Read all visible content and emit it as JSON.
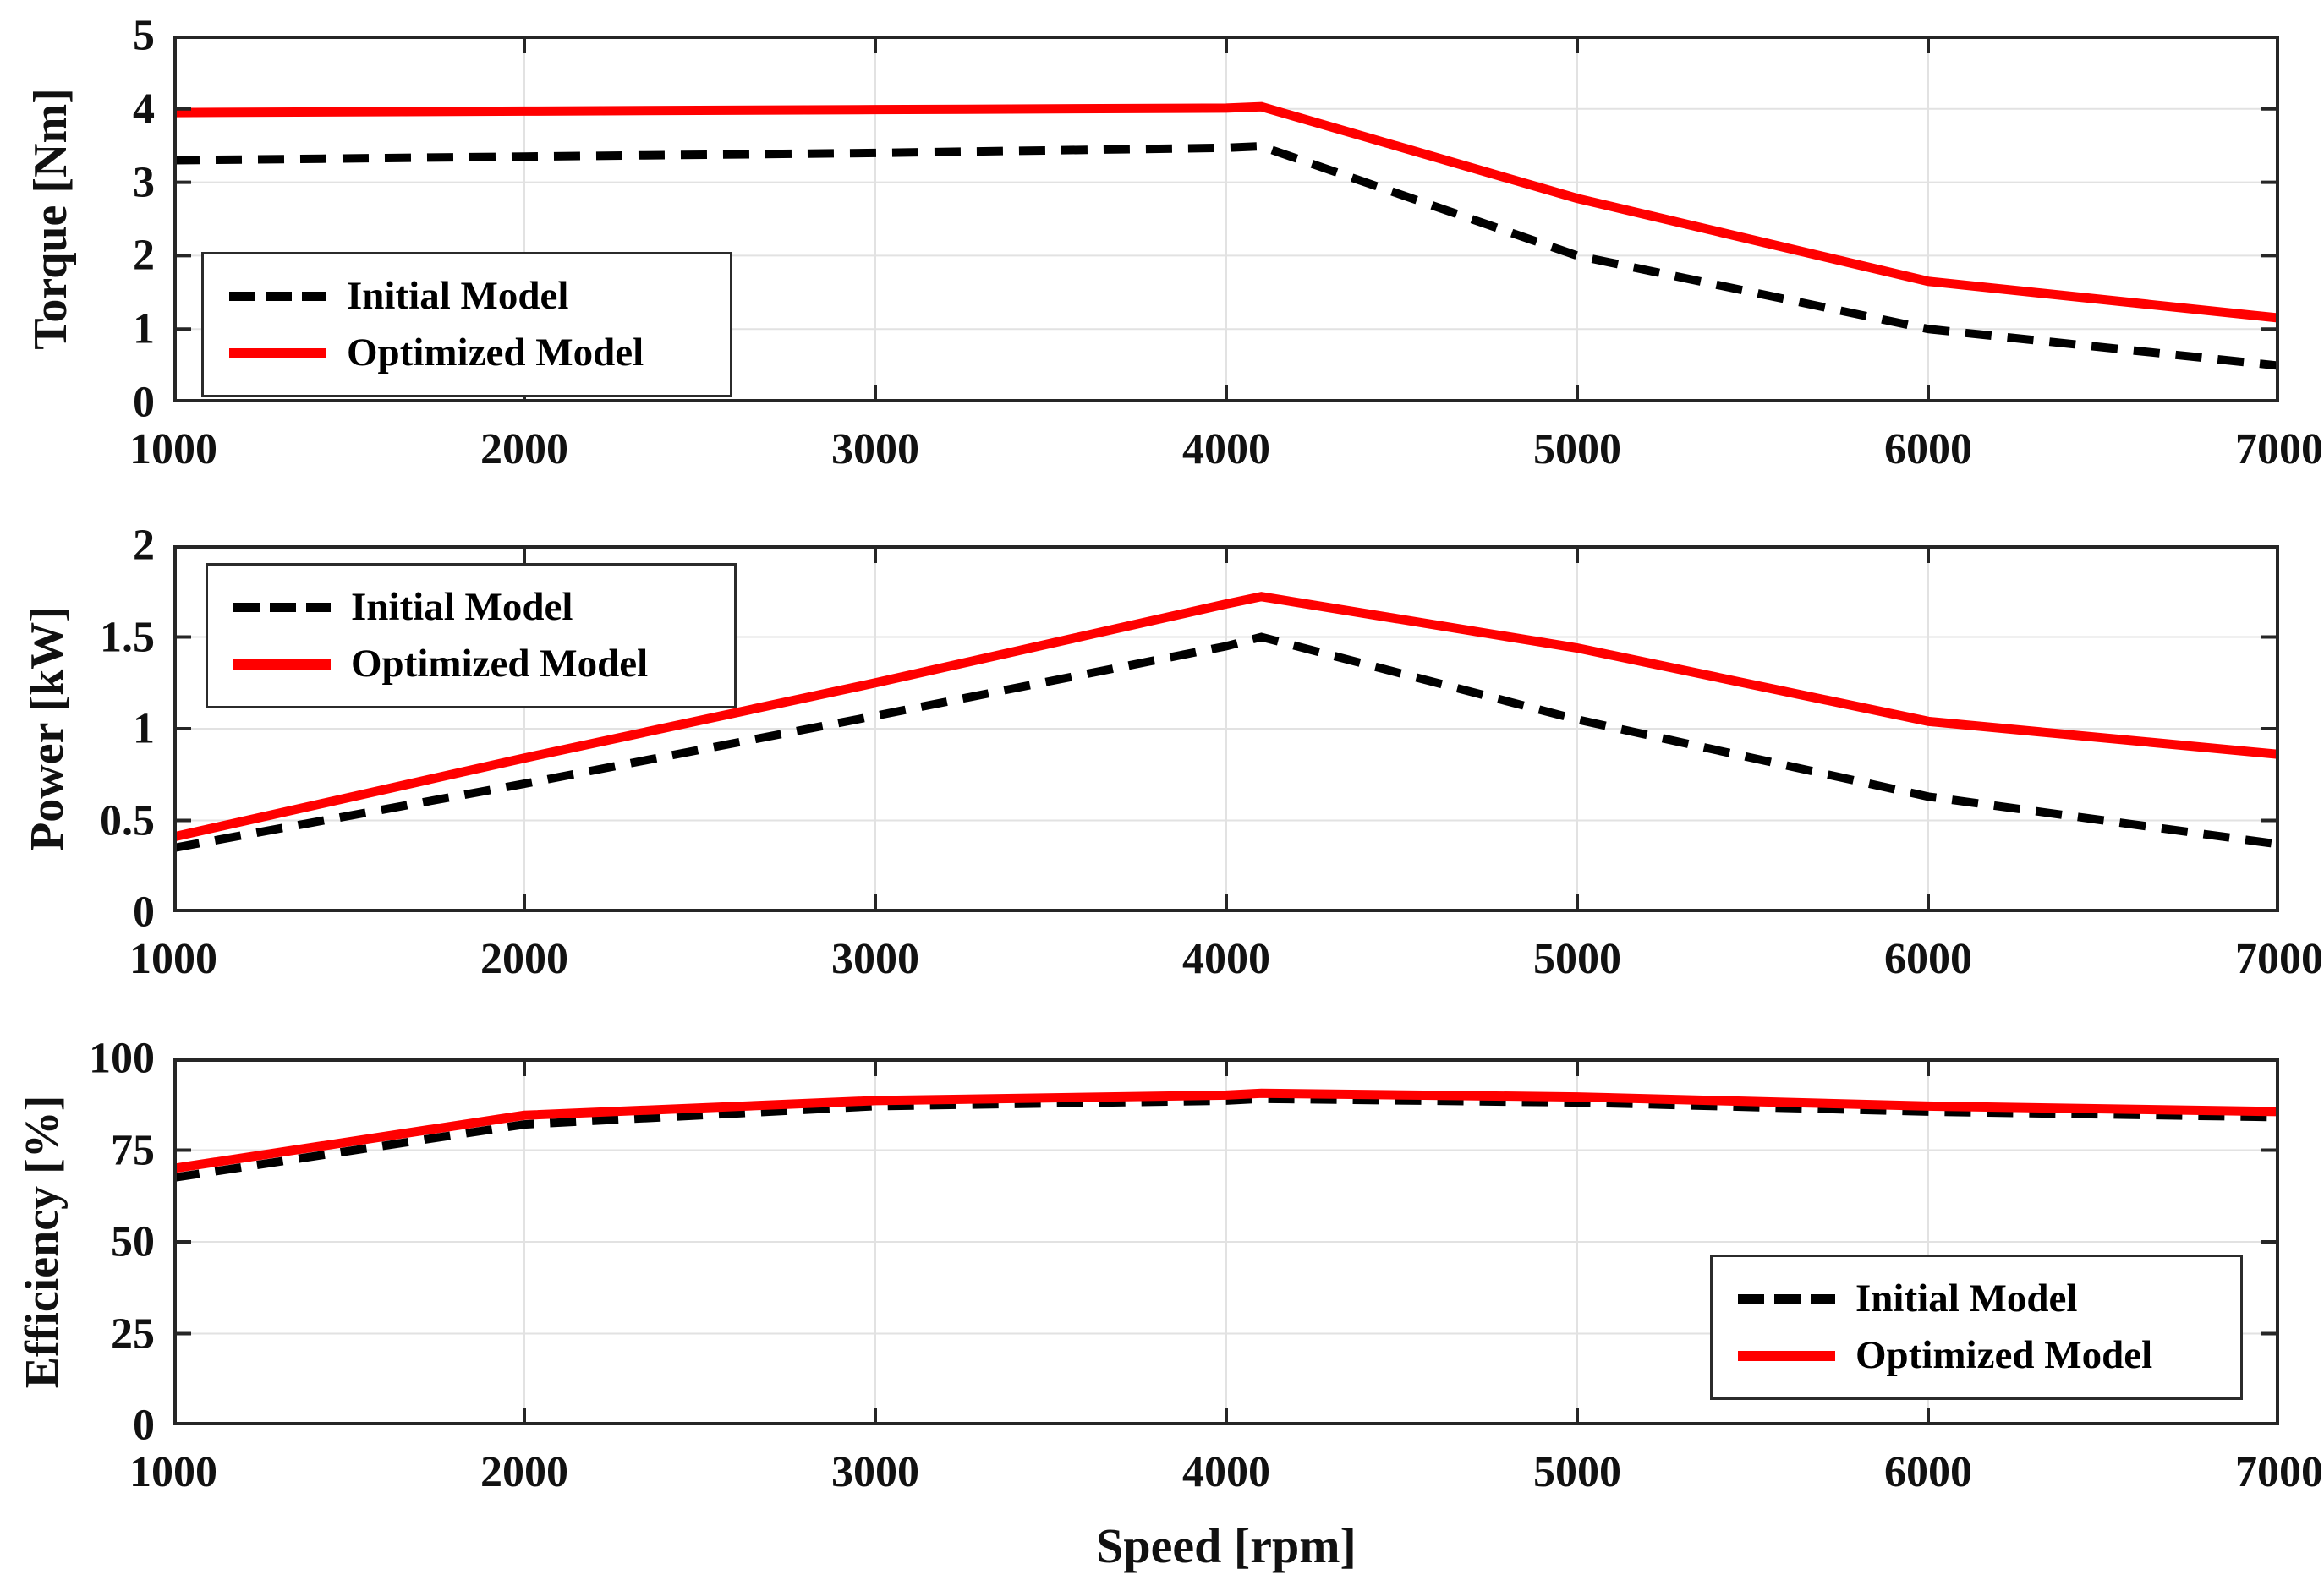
{
  "figure": {
    "xlabel": "Speed [rpm]",
    "background_color": "#FFFFFF",
    "frame_color": "#262626",
    "grid_color": "#E2E2E2"
  },
  "legend": {
    "initial_label": "Initial Model",
    "optimized_label": "Optimized Model",
    "initial_color": "#000000",
    "optimized_color": "#FF0000"
  },
  "chart_data": {
    "type": "line",
    "xlabel": "Speed [rpm]",
    "x": [
      1000,
      2000,
      3000,
      4000,
      4100,
      5000,
      6000,
      7000
    ],
    "x_ticks": [
      1000,
      2000,
      3000,
      4000,
      5000,
      6000,
      7000
    ],
    "xlim": [
      1000,
      7000
    ],
    "grid": true,
    "legend_entries": [
      "Initial Model",
      "Optimized Model"
    ],
    "panels": [
      {
        "ylabel": "Torque [Nm]",
        "ylim": [
          0,
          5
        ],
        "yticks": [
          0,
          1,
          2,
          3,
          4,
          5
        ],
        "legend_position": "top-left",
        "series": [
          {
            "name": "Initial Model",
            "color": "#000000",
            "style": "dashed",
            "values": [
              3.3,
              3.35,
              3.4,
              3.47,
              3.49,
              2.0,
              1.0,
              0.5
            ]
          },
          {
            "name": "Optimized Model",
            "color": "#FF0000",
            "style": "solid",
            "values": [
              3.95,
              3.97,
              3.99,
              4.01,
              4.03,
              2.78,
              1.65,
              1.15
            ]
          }
        ]
      },
      {
        "ylabel": "Power [kW]",
        "ylim": [
          0,
          2
        ],
        "yticks": [
          0,
          0.5,
          1,
          1.5,
          2
        ],
        "legend_position": "top-left",
        "series": [
          {
            "name": "Initial Model",
            "color": "#000000",
            "style": "dashed",
            "values": [
              0.35,
              0.7,
              1.07,
              1.45,
              1.5,
              1.05,
              0.63,
              0.37
            ]
          },
          {
            "name": "Optimized Model",
            "color": "#FF0000",
            "style": "solid",
            "values": [
              0.41,
              0.84,
              1.25,
              1.68,
              1.72,
              1.44,
              1.04,
              0.86
            ]
          }
        ]
      },
      {
        "ylabel": "Efficiency [%]",
        "ylim": [
          0,
          100
        ],
        "yticks": [
          0,
          25,
          50,
          75,
          100
        ],
        "legend_position": "bottom-right",
        "series": [
          {
            "name": "Initial Model",
            "color": "#000000",
            "style": "dashed",
            "values": [
              67.5,
              82,
              87,
              88.5,
              89,
              88,
              85.5,
              84
            ]
          },
          {
            "name": "Optimized Model",
            "color": "#FF0000",
            "style": "solid",
            "values": [
              70,
              84.5,
              88.5,
              90,
              90.5,
              89.5,
              87,
              85.5
            ]
          }
        ]
      }
    ]
  }
}
